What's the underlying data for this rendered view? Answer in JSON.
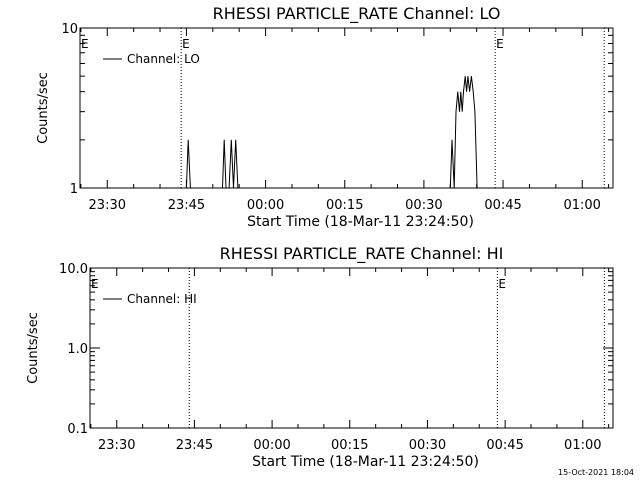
{
  "footer": {
    "timestamp": "15-Oct-2021 18:04"
  },
  "chart_data": [
    {
      "type": "line",
      "title": "RHESSI PARTICLE_RATE Channel: LO",
      "xlabel": "Start Time (18-Mar-11 23:24:50)",
      "ylabel": "Counts/sec",
      "yscale": "log",
      "ylim": [
        1,
        10
      ],
      "yticks": [
        {
          "value": 1,
          "label": "1"
        },
        {
          "value": 10,
          "label": "10"
        }
      ],
      "xlim": [
        "23:24:50",
        "01:05:50"
      ],
      "xticks": [
        "23:30",
        "23:45",
        "00:00",
        "00:15",
        "00:30",
        "00:45",
        "01:00"
      ],
      "x_tick_minutes": [
        -30,
        -15,
        0,
        15,
        30,
        45,
        60
      ],
      "event_lines": [
        {
          "time": "23:44:00",
          "label": "E"
        },
        {
          "time": "00:43:30",
          "label": "E"
        },
        {
          "time": "01:04:10",
          "label": ""
        }
      ],
      "edge_marker_label": "E",
      "legend": "top-left",
      "grid": false,
      "series": [
        {
          "name": "Channel: LO",
          "segments": [
            [
              [
                "23:45:00",
                1
              ],
              [
                "23:45:20",
                2
              ],
              [
                "23:45:45",
                1
              ]
            ],
            [
              [
                "23:51:50",
                1
              ],
              [
                "23:52:10",
                2
              ],
              [
                "23:52:30",
                1
              ]
            ],
            [
              [
                "23:53:05",
                1
              ],
              [
                "23:53:30",
                2
              ],
              [
                "23:53:55",
                1
              ],
              [
                "23:54:20",
                2
              ],
              [
                "23:54:45",
                1
              ]
            ],
            [
              [
                "00:35:00",
                1
              ],
              [
                "00:35:20",
                2
              ],
              [
                "00:35:45",
                1
              ],
              [
                "00:36:05",
                3
              ],
              [
                "00:36:25",
                4
              ],
              [
                "00:36:45",
                3
              ],
              [
                "00:37:00",
                4
              ],
              [
                "00:37:15",
                3
              ],
              [
                "00:37:30",
                4
              ],
              [
                "00:37:50",
                5
              ],
              [
                "00:38:05",
                4
              ],
              [
                "00:38:20",
                5
              ],
              [
                "00:38:40",
                4
              ],
              [
                "00:39:00",
                5
              ],
              [
                "00:39:20",
                4
              ],
              [
                "00:39:40",
                3
              ],
              [
                "00:40:05",
                1
              ]
            ]
          ]
        }
      ]
    },
    {
      "type": "line",
      "title": "RHESSI PARTICLE_RATE Channel: HI",
      "xlabel": "Start Time (18-Mar-11 23:24:50)",
      "ylabel": "Counts/sec",
      "yscale": "log",
      "ylim": [
        0.1,
        10
      ],
      "yticks": [
        {
          "value": 0.1,
          "label": "0.1"
        },
        {
          "value": 1,
          "label": "1.0"
        },
        {
          "value": 10,
          "label": "10.0"
        }
      ],
      "xlim": [
        "23:24:50",
        "01:05:50"
      ],
      "xticks": [
        "23:30",
        "23:45",
        "00:00",
        "00:15",
        "00:30",
        "00:45",
        "01:00"
      ],
      "x_tick_minutes": [
        -30,
        -15,
        0,
        15,
        30,
        45,
        60
      ],
      "event_lines": [
        {
          "time": "23:44:00",
          "label": ""
        },
        {
          "time": "00:43:30",
          "label": "E"
        },
        {
          "time": "01:04:10",
          "label": ""
        }
      ],
      "edge_marker_label": "E",
      "legend": "top-left",
      "grid": false,
      "series": [
        {
          "name": "Channel: HI",
          "segments": []
        }
      ]
    }
  ]
}
